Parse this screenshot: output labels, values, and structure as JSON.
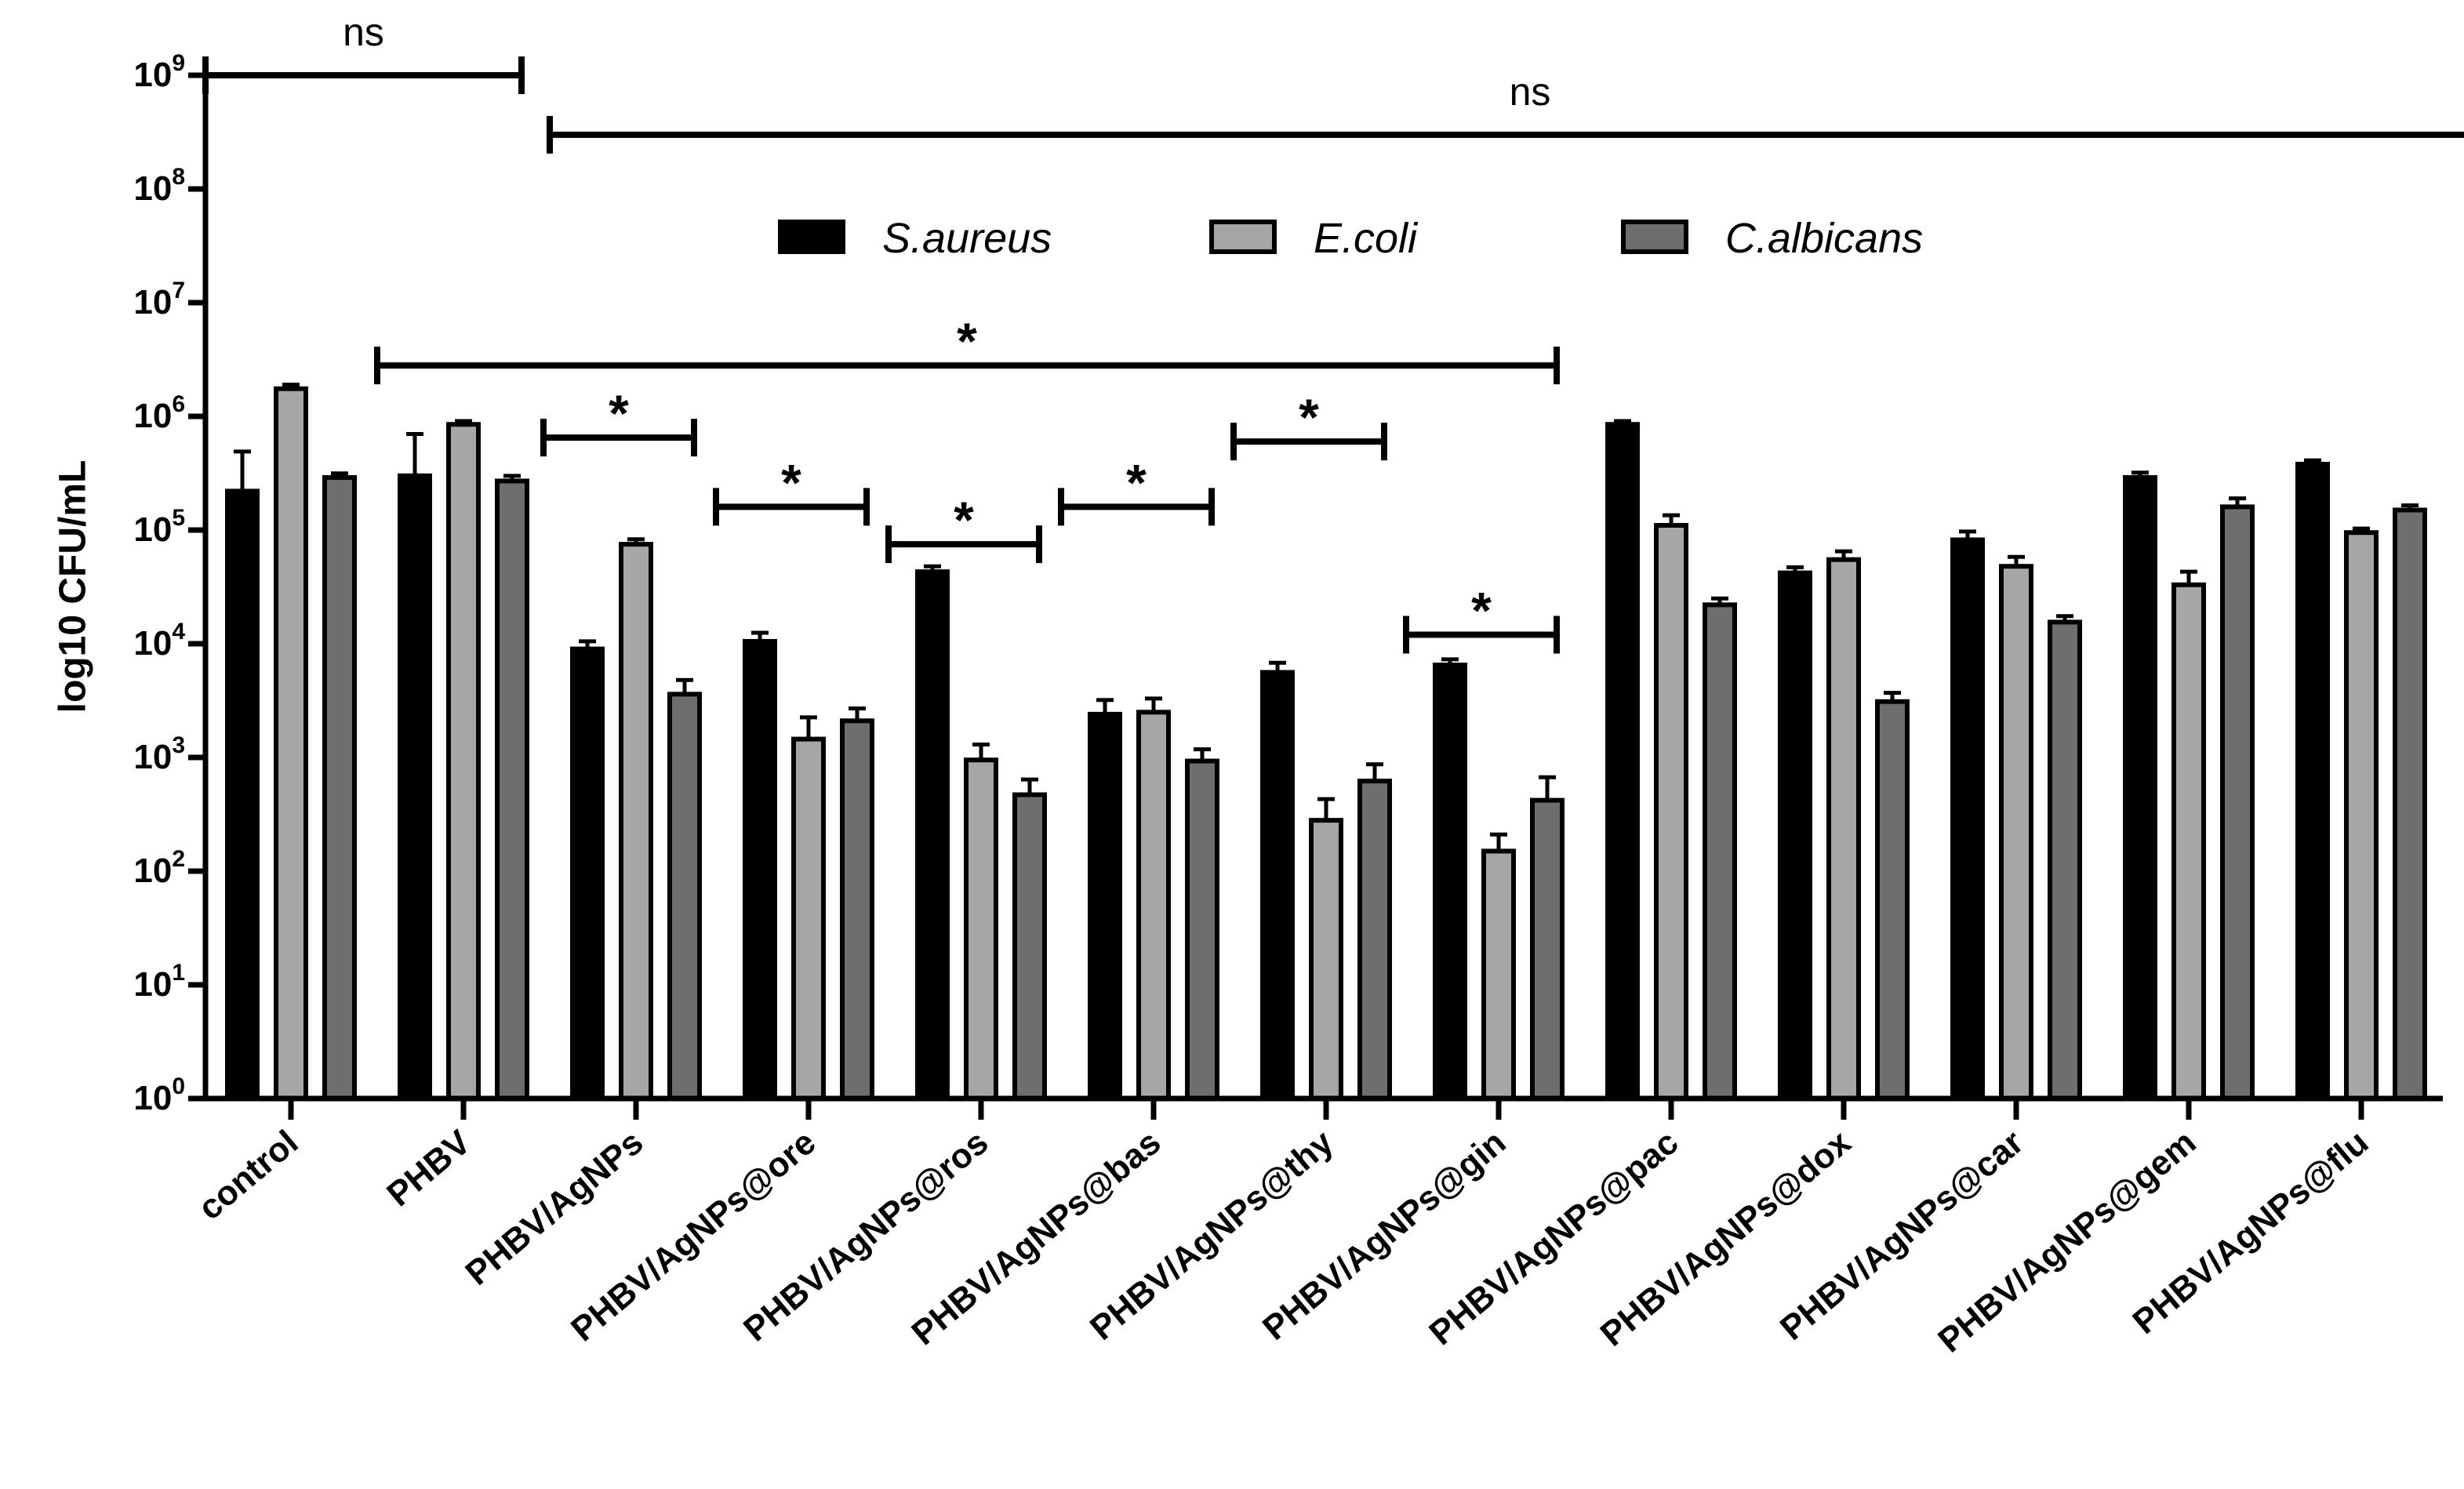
{
  "chart_data": {
    "type": "bar",
    "ylabel": "log10 CFU/mL",
    "yscale": "log",
    "ylim": [
      1,
      1000000000
    ],
    "yticks": [
      {
        "value": 1,
        "base": "10",
        "exp": "0"
      },
      {
        "value": 10,
        "base": "10",
        "exp": "1"
      },
      {
        "value": 100,
        "base": "10",
        "exp": "2"
      },
      {
        "value": 1000,
        "base": "10",
        "exp": "3"
      },
      {
        "value": 10000,
        "base": "10",
        "exp": "4"
      },
      {
        "value": 100000,
        "base": "10",
        "exp": "5"
      },
      {
        "value": 1000000,
        "base": "10",
        "exp": "6"
      },
      {
        "value": 10000000,
        "base": "10",
        "exp": "7"
      },
      {
        "value": 100000000,
        "base": "10",
        "exp": "8"
      },
      {
        "value": 1000000000,
        "base": "10",
        "exp": "9"
      }
    ],
    "categories": [
      "control",
      "PHBV",
      "PHBV/AgNPs",
      "PHBV/AgNPs@ore",
      "PHBV/AgNPs@ros",
      "PHBV/AgNPs@bas",
      "PHBV/AgNPs@thy",
      "PHBV/AgNPs@gin",
      "PHBV/AgNPs@pac",
      "PHBV/AgNPs@dox",
      "PHBV/AgNPs@car",
      "PHBV/AgNPs@gem",
      "PHBV/AgNPs@flu"
    ],
    "legend_position": "top-center",
    "series": [
      {
        "name": "S.aureus",
        "color": "#000000",
        "values": [
          220000,
          300000,
          9000,
          10500,
          43000,
          2400,
          5600,
          6500,
          850000,
          42000,
          82000,
          290000,
          380000
        ],
        "errors": [
          270000,
          400000,
          1500,
          2000,
          5000,
          800,
          1200,
          800,
          60000,
          5000,
          15000,
          30000,
          30000
        ]
      },
      {
        "name": "E.coli",
        "color": "#a6a6a6",
        "values": [
          1750000,
          850000,
          75000,
          1450,
          950,
          2500,
          280,
          150,
          110000,
          55000,
          48000,
          33000,
          95000
        ],
        "errors": [
          150000,
          60000,
          8000,
          800,
          350,
          800,
          150,
          60,
          25000,
          10000,
          10000,
          10000,
          8000
        ]
      },
      {
        "name": "C.albicans",
        "color": "#6e6e6e",
        "values": [
          290000,
          270000,
          3600,
          2100,
          470,
          930,
          620,
          420,
          22000,
          3100,
          15500,
          160000,
          150000
        ],
        "errors": [
          25000,
          30000,
          1200,
          600,
          170,
          250,
          250,
          250,
          3000,
          600,
          2000,
          30000,
          15000
        ]
      }
    ],
    "significance": [
      {
        "label": "ns",
        "from_category": 0,
        "to_category": 1,
        "level": 1000000000
      },
      {
        "label": "ns",
        "from_category": 2,
        "to_category": 12,
        "level": 300000000
      },
      {
        "label": "*",
        "from_category": 1,
        "to_category": 7,
        "level": 2800000
      },
      {
        "label": "*",
        "from_category": 2,
        "to_category": 2,
        "level": 650000
      },
      {
        "label": "*",
        "from_category": 3,
        "to_category": 3,
        "level": 160000
      },
      {
        "label": "*",
        "from_category": 4,
        "to_category": 4,
        "level": 75000
      },
      {
        "label": "*",
        "from_category": 5,
        "to_category": 5,
        "level": 160000
      },
      {
        "label": "*",
        "from_category": 6,
        "to_category": 6,
        "level": 600000
      },
      {
        "label": "*",
        "from_category": 7,
        "to_category": 7,
        "level": 12000
      }
    ]
  }
}
